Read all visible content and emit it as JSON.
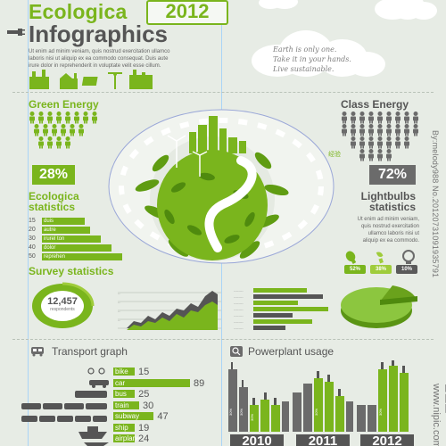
{
  "header": {
    "title1": "Ecologica",
    "year": "2012",
    "title2": "Infographics",
    "intro_lines": [
      "Ut enim ad minim veniam, quis nostrud exercitation ullamco",
      "laboris nisi ut aliquip ex ea commodo consequat. Duis aute",
      "irure dolor in reprehenderit in voluptate velit esse cillum."
    ]
  },
  "cloud_text_lines": [
    "Earth is only one.",
    "Take it in your hands.",
    "Live sustainable."
  ],
  "green_energy": {
    "title": "Green Energy",
    "percent": "28%"
  },
  "class_energy": {
    "title": "Class Energy",
    "percent": "72%"
  },
  "globe_label": "经验",
  "statistics": {
    "title1": "Ecologica",
    "title2": "statistics",
    "rows": [
      {
        "num": "15",
        "label": "duis",
        "value": 15
      },
      {
        "num": "20",
        "label": "autre",
        "value": 20
      },
      {
        "num": "30",
        "label": "irurel ton",
        "value": 30
      },
      {
        "num": "40",
        "label": "dolor",
        "value": 40
      },
      {
        "num": "50",
        "label": "reprehen",
        "value": 50
      }
    ]
  },
  "lightbulbs": {
    "title1": "Lightbulbs",
    "title2": "statistics",
    "lines": [
      "Ut enim ad minim veniam,",
      "quis nostrud exercitation",
      "ullamco laboris nisi ut",
      "aliquip ex ea commodo."
    ],
    "bulbs": [
      {
        "pct": "52%",
        "color": "#7ab51d"
      },
      {
        "pct": "38%",
        "color": "#9fcc3b"
      },
      {
        "pct": "10%",
        "color": "#5a5a5a"
      }
    ]
  },
  "survey": {
    "title": "Survey statistics",
    "count": "12,457",
    "sub": "respondents"
  },
  "transport": {
    "title": "Transport graph",
    "rows": [
      {
        "label": "bike",
        "value": 15
      },
      {
        "label": "car",
        "value": 89
      },
      {
        "label": "bus",
        "value": 25
      },
      {
        "label": "train",
        "value": 30
      },
      {
        "label": "subway",
        "value": 47
      },
      {
        "label": "ship",
        "value": 19
      },
      {
        "label": "airplane",
        "value": 24
      }
    ]
  },
  "powerplant": {
    "title": "Powerplant usage",
    "years": [
      "2010",
      "2011",
      "2012"
    ]
  },
  "watermark": {
    "right": "By:melody988 No.20120731091935791",
    "bottom": "昵图网 www.nipic.com"
  },
  "colors": {
    "green": "#7ab51d",
    "gray": "#6b6b6b",
    "light": "#e7ece5"
  }
}
